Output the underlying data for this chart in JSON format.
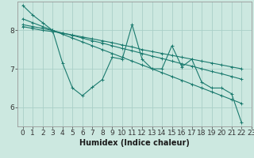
{
  "xlabel": "Humidex (Indice chaleur)",
  "background_color": "#cce8e0",
  "grid_color": "#aacfc8",
  "line_color": "#1a7a6e",
  "xlim": [
    -0.5,
    23
  ],
  "ylim": [
    5.5,
    8.75
  ],
  "yticks": [
    6,
    7,
    8
  ],
  "xticks": [
    0,
    1,
    2,
    3,
    4,
    5,
    6,
    7,
    8,
    9,
    10,
    11,
    12,
    13,
    14,
    15,
    16,
    17,
    18,
    19,
    20,
    21,
    22,
    23
  ],
  "series": [
    [
      8.65,
      8.4,
      8.2,
      8.0,
      7.15,
      6.5,
      6.3,
      6.52,
      6.72,
      7.3,
      7.25,
      8.15,
      7.25,
      7.0,
      7.0,
      7.6,
      7.05,
      7.25,
      6.65,
      6.5,
      6.5,
      6.35,
      5.6,
      null
    ],
    [
      8.1,
      8.05,
      8.0,
      7.97,
      7.93,
      7.88,
      7.83,
      7.78,
      7.73,
      7.68,
      7.62,
      7.57,
      7.5,
      7.45,
      7.4,
      7.35,
      7.3,
      7.25,
      7.2,
      7.15,
      7.1,
      7.05,
      7.0,
      null
    ],
    [
      8.15,
      8.1,
      8.05,
      8.0,
      7.93,
      7.87,
      7.8,
      7.73,
      7.67,
      7.6,
      7.53,
      7.47,
      7.4,
      7.33,
      7.27,
      7.2,
      7.13,
      7.07,
      7.0,
      6.93,
      6.87,
      6.8,
      6.73,
      null
    ],
    [
      8.3,
      8.2,
      8.1,
      8.0,
      7.9,
      7.8,
      7.7,
      7.6,
      7.5,
      7.4,
      7.3,
      7.2,
      7.1,
      7.0,
      6.9,
      6.8,
      6.7,
      6.6,
      6.5,
      6.4,
      6.3,
      6.2,
      6.1,
      null
    ]
  ],
  "font_size": 7,
  "tick_font_size": 6.5,
  "marker_size": 3,
  "linewidth": 0.8
}
